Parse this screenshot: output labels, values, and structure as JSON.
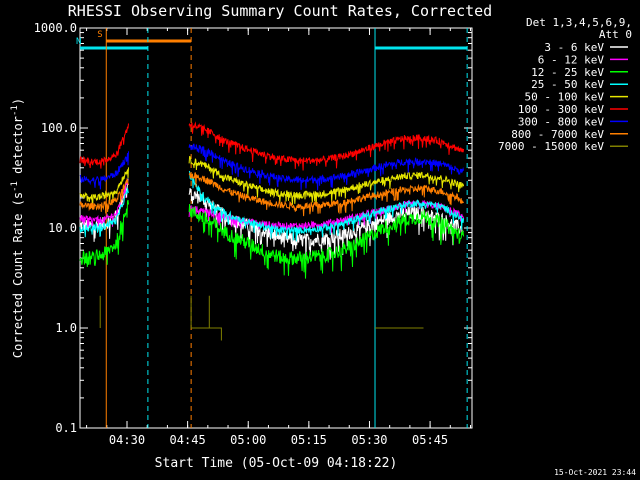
{
  "chart_data": {
    "type": "line",
    "title": "RHESSI Observing Summary Count Rates, Corrected",
    "xlabel": "Start Time (05-Oct-09 04:18:22)",
    "ylabel_main": "Corrected Count Rate (s",
    "ylabel_sup1": "-1",
    "ylabel_mid": " detector",
    "ylabel_sup2": "-1",
    "ylabel_end": ")",
    "y_scale": "log",
    "ylim": [
      0.1,
      1000
    ],
    "y_ticks": [
      {
        "value": 0.1,
        "label": "0.1"
      },
      {
        "value": 1,
        "label": "1.0"
      },
      {
        "value": 10,
        "label": "10.0"
      },
      {
        "value": 100,
        "label": "100.0"
      },
      {
        "value": 1000,
        "label": "1000.0"
      }
    ],
    "x_unit": "minutes after 04:18:22",
    "xlim": [
      0,
      97
    ],
    "x_ticks": [
      {
        "value": 11.63,
        "label": "04:30"
      },
      {
        "value": 26.63,
        "label": "04:45"
      },
      {
        "value": 41.63,
        "label": "05:00"
      },
      {
        "value": 56.63,
        "label": "05:15"
      },
      {
        "value": 71.63,
        "label": "05:30"
      },
      {
        "value": 86.63,
        "label": "05:45"
      }
    ],
    "legend_position": "right",
    "legend_header": [
      "Det 1,3,4,5,6,9,",
      "Att 0"
    ],
    "series": [
      {
        "name": "3 - 6 keV",
        "color": "#ffffff",
        "segments": [
          {
            "x": [
              0,
              3,
              6,
              9,
              12
            ],
            "y": [
              10.5,
              10.5,
              11,
              13,
              30
            ]
          },
          {
            "x": [
              27,
              30,
              33,
              36,
              40,
              45,
              50,
              55,
              60,
              65,
              70,
              75,
              80,
              85,
              90,
              95
            ],
            "y": [
              22,
              20,
              16,
              13,
              11,
              9.5,
              8,
              7.5,
              7.8,
              8.5,
              10,
              12,
              14,
              14,
              12,
              9.5
            ]
          }
        ]
      },
      {
        "name": "6 - 12 keV",
        "color": "#ff00ff",
        "segments": [
          {
            "x": [
              0,
              3,
              6,
              9,
              12
            ],
            "y": [
              12.5,
              12,
              12,
              14,
              32
            ]
          },
          {
            "x": [
              27,
              30,
              33,
              36,
              40,
              45,
              50,
              55,
              60,
              65,
              70,
              75,
              80,
              85,
              90,
              95
            ],
            "y": [
              16,
              15,
              14,
              13,
              12,
              11,
              10.5,
              10.5,
              11,
              12,
              13.5,
              15,
              17,
              17.5,
              16,
              13
            ]
          }
        ]
      },
      {
        "name": "12 - 25 keV",
        "color": "#00ff00",
        "segments": [
          {
            "x": [
              0,
              3,
              6,
              9,
              12
            ],
            "y": [
              5,
              5,
              5.5,
              7,
              20
            ]
          },
          {
            "x": [
              27,
              30,
              33,
              36,
              40,
              45,
              50,
              55,
              60,
              65,
              70,
              75,
              80,
              85,
              90,
              95
            ],
            "y": [
              15,
              13,
              11,
              9,
              7.5,
              6,
              5,
              5,
              5.3,
              6,
              7.5,
              10,
              12,
              13,
              11,
              8
            ]
          }
        ]
      },
      {
        "name": "25 - 50 keV",
        "color": "#00ffff",
        "segments": [
          {
            "x": [
              0,
              3,
              6,
              9,
              12
            ],
            "y": [
              10,
              10,
              10.5,
              12,
              25
            ]
          },
          {
            "x": [
              27,
              30,
              33,
              36,
              40,
              45,
              50,
              55,
              60,
              65,
              70,
              75,
              80,
              85,
              90,
              95
            ],
            "y": [
              35,
              22,
              17,
              14,
              12,
              10.5,
              9.5,
              9.5,
              10,
              11,
              13,
              15,
              17,
              18,
              16,
              12
            ]
          }
        ]
      },
      {
        "name": "50 - 100 keV",
        "color": "#e6e600",
        "segments": [
          {
            "x": [
              0,
              3,
              6,
              9,
              12
            ],
            "y": [
              21,
              20,
              21,
              24,
              40
            ]
          },
          {
            "x": [
              27,
              30,
              33,
              36,
              40,
              45,
              50,
              55,
              60,
              65,
              70,
              75,
              80,
              85,
              90,
              95
            ],
            "y": [
              48,
              44,
              38,
              32,
              28,
              24,
              22,
              21.5,
              22,
              24,
              27,
              30,
              33,
              34,
              31,
              26
            ]
          }
        ]
      },
      {
        "name": "100 - 300 keV",
        "color": "#ff0000",
        "segments": [
          {
            "x": [
              0,
              3,
              6,
              9,
              12
            ],
            "y": [
              48,
              46,
              47,
              55,
              105
            ]
          },
          {
            "x": [
              27,
              30,
              33,
              36,
              40,
              45,
              50,
              55,
              60,
              65,
              70,
              75,
              80,
              85,
              90,
              95
            ],
            "y": [
              110,
              100,
              88,
              74,
              64,
              55,
              49,
              47,
              48,
              52,
              60,
              70,
              78,
              80,
              72,
              58
            ]
          }
        ]
      },
      {
        "name": "300 - 800 keV",
        "color": "#0000ff",
        "segments": [
          {
            "x": [
              0,
              3,
              6,
              9,
              12
            ],
            "y": [
              31,
              30,
              31,
              35,
              55
            ]
          },
          {
            "x": [
              27,
              30,
              33,
              36,
              40,
              45,
              50,
              55,
              60,
              65,
              70,
              75,
              80,
              85,
              90,
              95
            ],
            "y": [
              65,
              62,
              55,
              46,
              40,
              35,
              31,
              30,
              31,
              33,
              37,
              42,
              46,
              47,
              43,
              36
            ]
          }
        ]
      },
      {
        "name": "800 - 7000 keV",
        "color": "#ff7f00",
        "segments": [
          {
            "x": [
              0,
              3,
              6,
              9,
              12
            ],
            "y": [
              17,
              16.5,
              17,
              19,
              30
            ]
          },
          {
            "x": [
              27,
              30,
              33,
              36,
              40,
              45,
              50,
              55,
              60,
              65,
              70,
              75,
              80,
              85,
              90,
              95
            ],
            "y": [
              34,
              32,
              28,
              24,
              21,
              18.5,
              17,
              16.5,
              17,
              18,
              20,
              22,
              24,
              25,
              23,
              19
            ]
          }
        ]
      },
      {
        "name": "7000 - 15000 keV",
        "color": "#808000",
        "segments": [
          {
            "x": [
              5,
              5
            ],
            "y": [
              1.0,
              2.1
            ]
          },
          {
            "x": [
              27.5,
              27.5,
              27.5,
              32,
              32,
              32,
              35,
              35
            ],
            "y": [
              2.1,
              1.0,
              1.0,
              1.0,
              2.1,
              1.0,
              1.0,
              0.75
            ]
          },
          {
            "x": [
              73,
              85
            ],
            "y": [
              1.0,
              1.0
            ]
          }
        ]
      }
    ],
    "flag_bars": [
      {
        "label": "S",
        "color": "#ff7f00",
        "x_start": 6.5,
        "x_end": 27.5,
        "y_level": "top"
      },
      {
        "label": "N",
        "color": "#00e5ee",
        "x_start": 0,
        "x_end": 16.8,
        "y_level": "second"
      },
      {
        "label": "",
        "color": "#00e5ee",
        "x_start": 73,
        "x_end": 95.8,
        "y_level": "second"
      }
    ],
    "vlines": [
      {
        "x": 6.5,
        "color": "#ff7f00",
        "style": "solid"
      },
      {
        "x": 16.8,
        "color": "#00e5ee",
        "style": "dashed"
      },
      {
        "x": 27.5,
        "color": "#ff7f00",
        "style": "dashed"
      },
      {
        "x": 73.0,
        "color": "#00e5ee",
        "style": "solid"
      },
      {
        "x": 95.8,
        "color": "#00e5ee",
        "style": "dashed"
      }
    ],
    "footer_timestamp": "15-Oct-2021 23:44"
  }
}
